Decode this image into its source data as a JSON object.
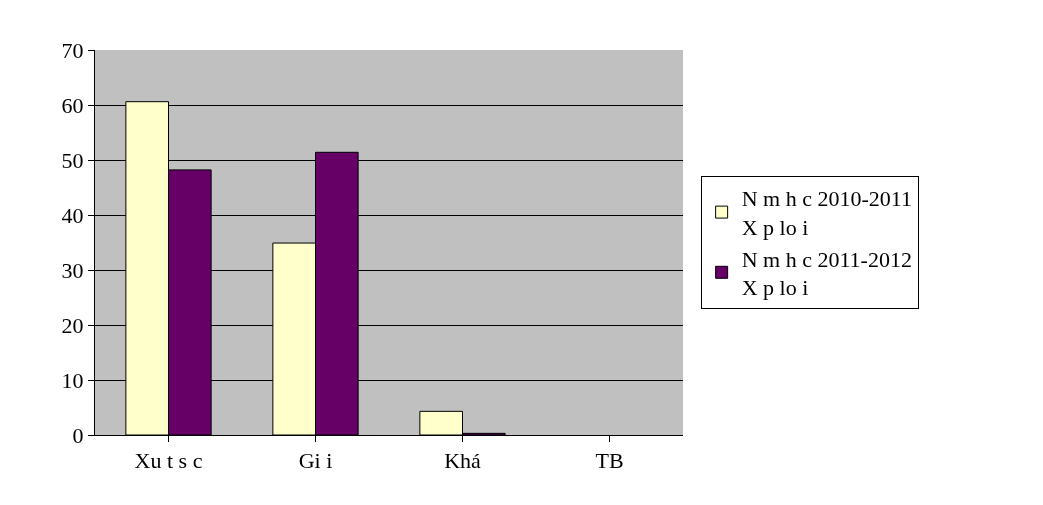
{
  "chart_data": {
    "type": "bar",
    "categories": [
      "Xu t s c",
      "Gi i",
      "Khá",
      "TB"
    ],
    "series": [
      {
        "name": "N m h c 2010-2011\nX p lo i",
        "color": "#ffffcc",
        "values": [
          60.6,
          34.9,
          4.3,
          null
        ]
      },
      {
        "name": "N m h c 2011-2012\nX p lo i",
        "color": "#660066",
        "values": [
          48.2,
          51.4,
          0.3,
          null
        ]
      }
    ],
    "ylim": [
      0,
      70
    ],
    "yticks": [
      0,
      10,
      20,
      30,
      40,
      50,
      60,
      70
    ],
    "grid": "y",
    "legend": "right"
  }
}
